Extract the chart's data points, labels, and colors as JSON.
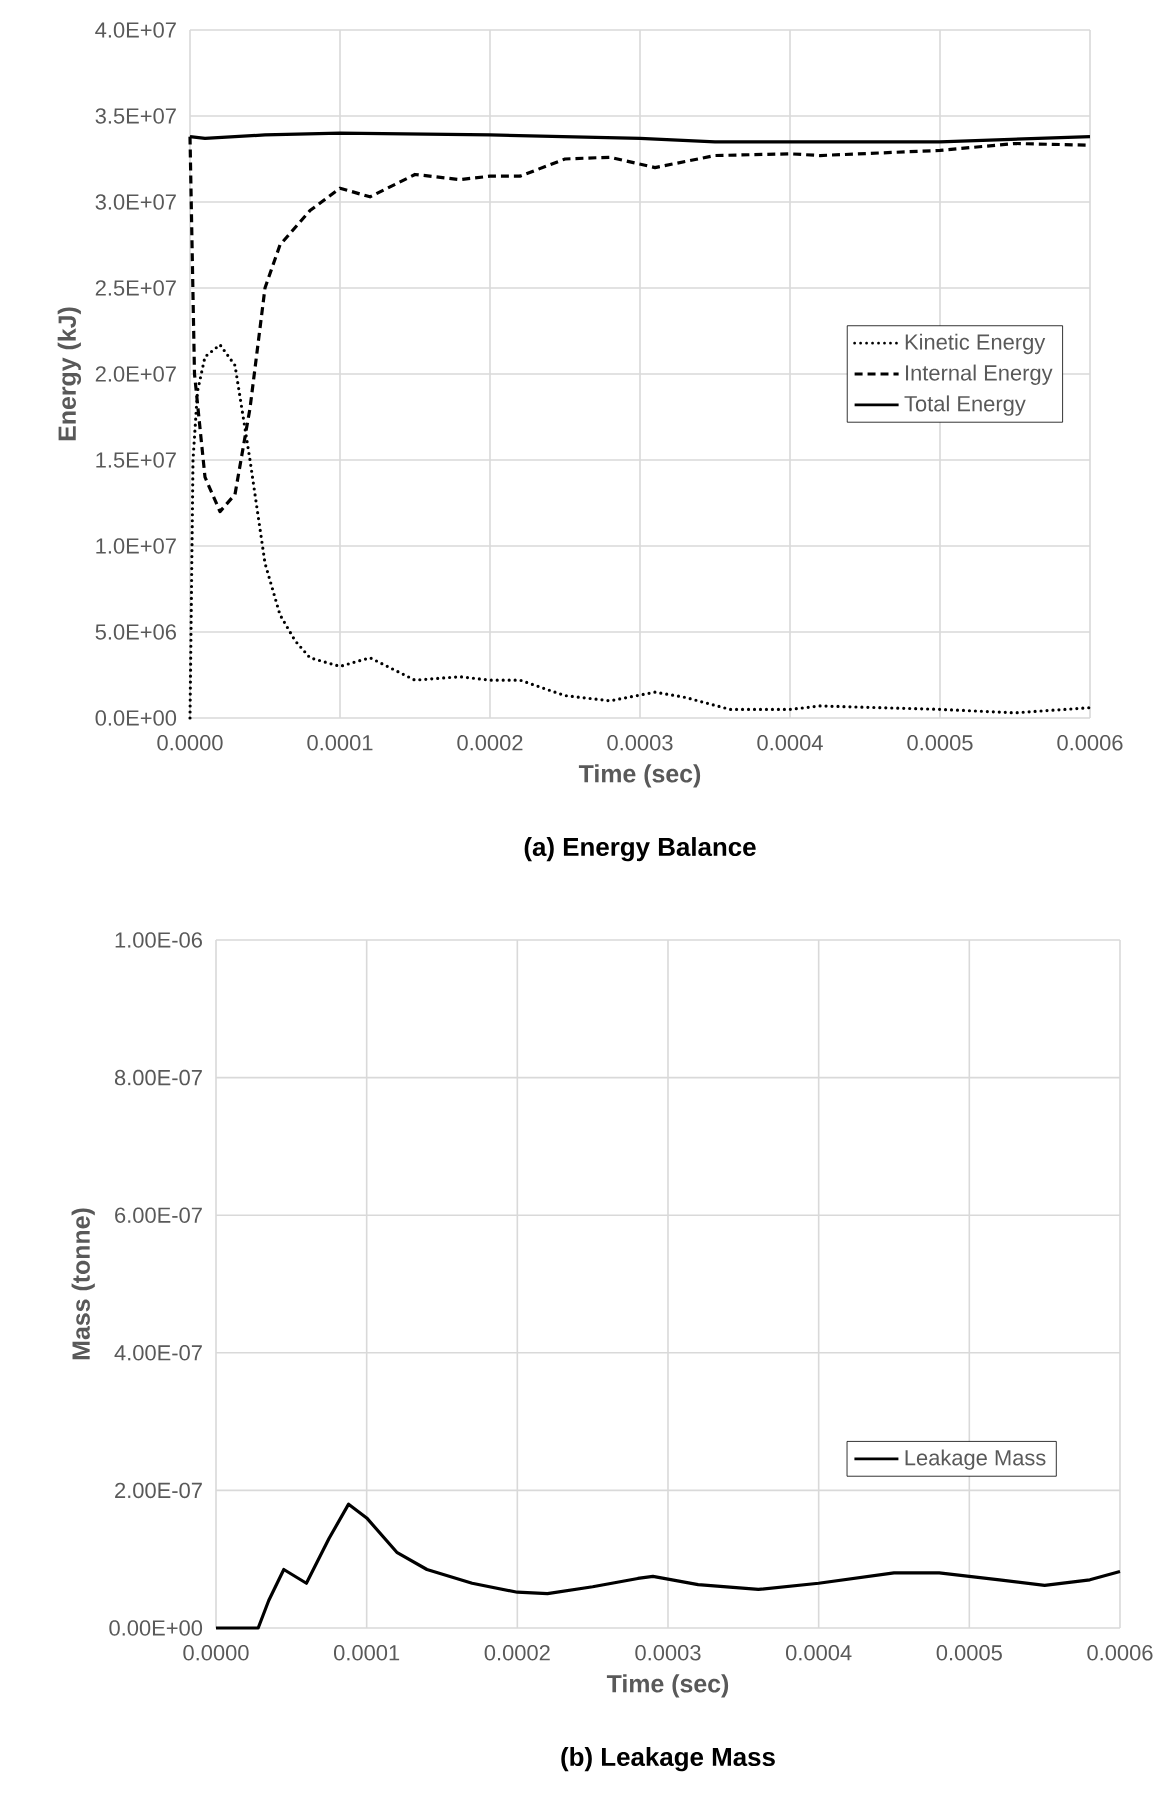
{
  "chart_data": [
    {
      "type": "line",
      "title": "(a)  Energy Balance",
      "xlabel": "Time (sec)",
      "ylabel": "Energy (kJ)",
      "xlim": [
        0,
        0.0006
      ],
      "ylim": [
        0,
        40000000
      ],
      "xticks": [
        {
          "value": 0,
          "label": "0.0000"
        },
        {
          "value": 0.0001,
          "label": "0.0001"
        },
        {
          "value": 0.0002,
          "label": "0.0002"
        },
        {
          "value": 0.0003,
          "label": "0.0003"
        },
        {
          "value": 0.0004,
          "label": "0.0004"
        },
        {
          "value": 0.0005,
          "label": "0.0005"
        },
        {
          "value": 0.0006,
          "label": "0.0006"
        }
      ],
      "yticks": [
        {
          "value": 0,
          "label": "0.0E+00"
        },
        {
          "value": 5000000,
          "label": "5.0E+06"
        },
        {
          "value": 10000000,
          "label": "1.0E+07"
        },
        {
          "value": 15000000,
          "label": "1.5E+07"
        },
        {
          "value": 20000000,
          "label": "2.0E+07"
        },
        {
          "value": 25000000,
          "label": "2.5E+07"
        },
        {
          "value": 30000000,
          "label": "3.0E+07"
        },
        {
          "value": 35000000,
          "label": "3.5E+07"
        },
        {
          "value": 40000000,
          "label": "4.0E+07"
        }
      ],
      "grid": true,
      "legend": "right",
      "marker": "none",
      "series": [
        {
          "name": "Kinetic Energy",
          "color": "#000000",
          "line_style": "dotted",
          "x": [
            0,
            2e-06,
            5e-06,
            1e-05,
            2e-05,
            3e-05,
            4e-05,
            5e-05,
            6e-05,
            7e-05,
            8e-05,
            0.0001,
            0.00012,
            0.00015,
            0.00018,
            0.0002,
            0.00022,
            0.00025,
            0.00028,
            0.00031,
            0.00033,
            0.00036,
            0.0004,
            0.00042,
            0.0005,
            0.00055,
            0.0006
          ],
          "values": [
            0,
            15000000,
            19000000,
            21000000,
            21700000,
            20500000,
            15000000,
            9000000,
            6000000,
            4500000,
            3500000,
            3000000,
            3500000,
            2200000,
            2400000,
            2200000,
            2200000,
            1300000,
            1000000,
            1500000,
            1200000,
            500000,
            500000,
            700000,
            500000,
            300000,
            600000
          ]
        },
        {
          "name": "Internal Energy",
          "color": "#000000",
          "line_style": "dashed",
          "x": [
            0,
            3e-06,
            1e-05,
            2e-05,
            3e-05,
            4e-05,
            5e-05,
            6e-05,
            8e-05,
            0.0001,
            0.00012,
            0.00015,
            0.00018,
            0.0002,
            0.00022,
            0.00025,
            0.00028,
            0.00031,
            0.00035,
            0.0004,
            0.00042,
            0.0005,
            0.00055,
            0.0006
          ],
          "values": [
            33800000,
            20000000,
            14000000,
            12000000,
            13000000,
            18000000,
            25000000,
            27500000,
            29500000,
            30800000,
            30300000,
            31600000,
            31300000,
            31500000,
            31500000,
            32500000,
            32600000,
            32000000,
            32700000,
            32800000,
            32700000,
            33000000,
            33400000,
            33300000
          ]
        },
        {
          "name": "Total Energy",
          "color": "#000000",
          "line_style": "solid",
          "x": [
            0,
            1e-05,
            5e-05,
            0.0001,
            0.0002,
            0.0003,
            0.00035,
            0.0005,
            0.0006
          ],
          "values": [
            33800000,
            33700000,
            33900000,
            34000000,
            33900000,
            33700000,
            33500000,
            33500000,
            33800000
          ]
        }
      ]
    },
    {
      "type": "line",
      "title": "(b)  Leakage Mass",
      "xlabel": "Time (sec)",
      "ylabel": "Mass (tonne)",
      "xlim": [
        0,
        0.0006
      ],
      "ylim": [
        0,
        1e-06
      ],
      "xticks": [
        {
          "value": 0,
          "label": "0.0000"
        },
        {
          "value": 0.0001,
          "label": "0.0001"
        },
        {
          "value": 0.0002,
          "label": "0.0002"
        },
        {
          "value": 0.0003,
          "label": "0.0003"
        },
        {
          "value": 0.0004,
          "label": "0.0004"
        },
        {
          "value": 0.0005,
          "label": "0.0005"
        },
        {
          "value": 0.0006,
          "label": "0.0006"
        }
      ],
      "yticks": [
        {
          "value": 0,
          "label": "0.00E+00"
        },
        {
          "value": 2e-07,
          "label": "2.00E-07"
        },
        {
          "value": 4e-07,
          "label": "4.00E-07"
        },
        {
          "value": 6e-07,
          "label": "6.00E-07"
        },
        {
          "value": 8e-07,
          "label": "8.00E-07"
        },
        {
          "value": 1e-06,
          "label": "1.00E-06"
        }
      ],
      "grid": true,
      "legend": "bottom right",
      "marker": "none",
      "series": [
        {
          "name": "Leakage Mass",
          "color": "#000000",
          "line_style": "solid",
          "x": [
            0,
            2.8e-05,
            3.5e-05,
            4.5e-05,
            6e-05,
            7.5e-05,
            8.8e-05,
            0.0001,
            0.00012,
            0.00014,
            0.00017,
            0.0002,
            0.00022,
            0.00025,
            0.00028,
            0.00029,
            0.00032,
            0.00036,
            0.0004,
            0.00045,
            0.00048,
            0.00052,
            0.00055,
            0.00058,
            0.0006
          ],
          "values": [
            0,
            0,
            4e-08,
            8.5e-08,
            6.5e-08,
            1.3e-07,
            1.8e-07,
            1.6e-07,
            1.1e-07,
            8.5e-08,
            6.5e-08,
            5.2e-08,
            5e-08,
            6e-08,
            7.2e-08,
            7.5e-08,
            6.3e-08,
            5.6e-08,
            6.5e-08,
            8e-08,
            8e-08,
            7e-08,
            6.2e-08,
            7e-08,
            8.2e-08
          ]
        }
      ]
    }
  ]
}
